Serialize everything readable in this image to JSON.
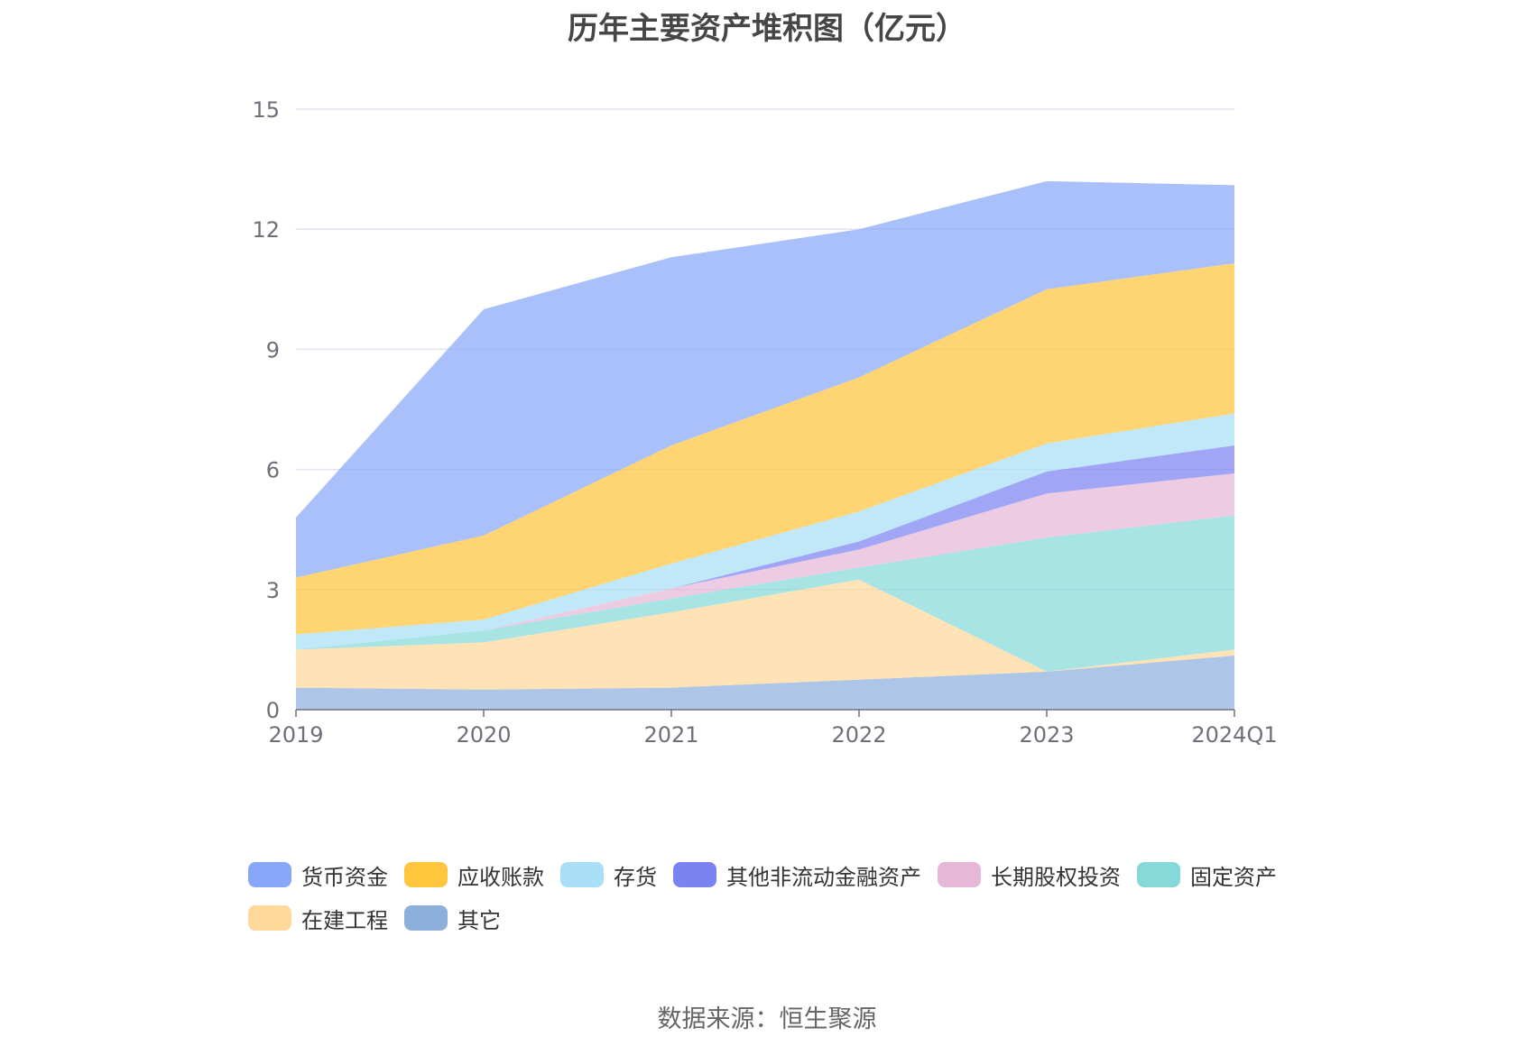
{
  "chart_data": {
    "type": "area",
    "stacked": true,
    "title": "历年主要资产堆积图（亿元）",
    "xlabel": "",
    "ylabel": "",
    "categories": [
      "2019",
      "2020",
      "2021",
      "2022",
      "2023",
      "2024Q1"
    ],
    "ylim": [
      0,
      15
    ],
    "yticks": [
      "0",
      "3",
      "6",
      "9",
      "12",
      "15"
    ],
    "grid": true,
    "legend_position": "bottom",
    "series": [
      {
        "name": "其它",
        "color": "#8eaedc",
        "values": [
          0.55,
          0.5,
          0.55,
          0.75,
          0.95,
          1.35
        ]
      },
      {
        "name": "在建工程",
        "color": "#ffd89a",
        "values": [
          0.95,
          1.18,
          1.88,
          2.5,
          0.0,
          0.15
        ]
      },
      {
        "name": "固定资产",
        "color": "#86d9d9",
        "values": [
          0.0,
          0.3,
          0.35,
          0.3,
          3.35,
          3.35
        ]
      },
      {
        "name": "长期股权投资",
        "color": "#e6b8d8",
        "values": [
          0.0,
          0.0,
          0.25,
          0.45,
          1.1,
          1.05
        ]
      },
      {
        "name": "其他非流动金融资产",
        "color": "#7b82f2",
        "values": [
          0.0,
          0.0,
          0.0,
          0.2,
          0.55,
          0.7
        ]
      },
      {
        "name": "存货",
        "color": "#a8dff6",
        "values": [
          0.38,
          0.27,
          0.62,
          0.75,
          0.7,
          0.8
        ]
      },
      {
        "name": "应收账款",
        "color": "#ffc53d",
        "values": [
          1.42,
          2.1,
          2.95,
          3.35,
          3.85,
          3.75
        ]
      },
      {
        "name": "货币资金",
        "color": "#88a7f8",
        "values": [
          1.5,
          5.65,
          4.7,
          3.7,
          2.7,
          1.95
        ]
      }
    ]
  },
  "legend_order": [
    "货币资金",
    "应收账款",
    "存货",
    "其他非流动金融资产",
    "长期股权投资",
    "固定资产",
    "在建工程",
    "其它"
  ],
  "footer": {
    "source": "数据来源：恒生聚源"
  }
}
